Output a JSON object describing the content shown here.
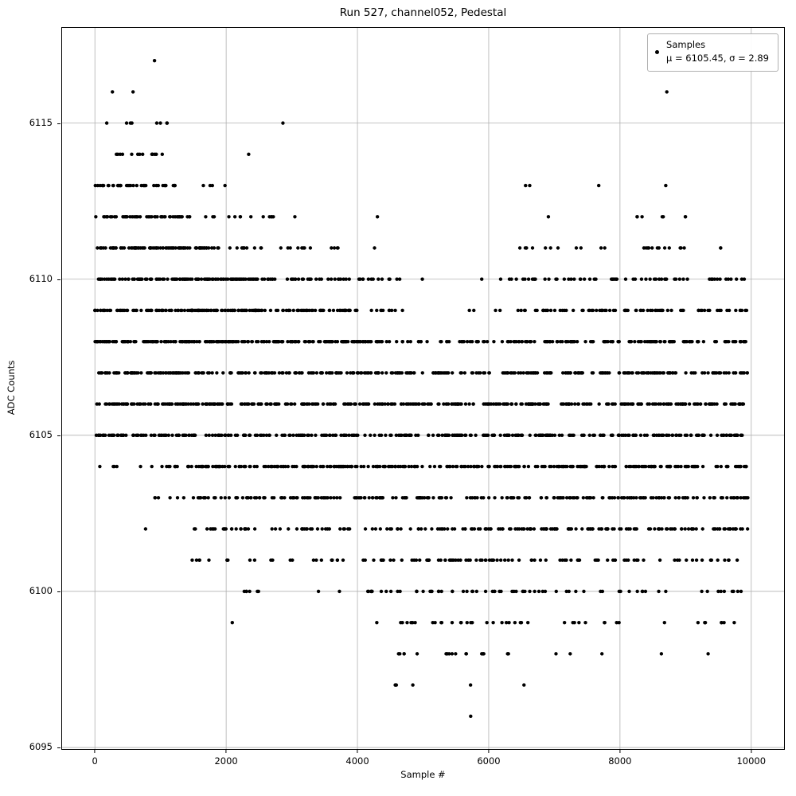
{
  "figure": {
    "title": "Run 527, channel052, Pedestal",
    "xlabel": "Sample #",
    "ylabel": "ADC Counts",
    "legend": {
      "line1": "Samples",
      "line2": "μ = 6105.45, σ = 2.89"
    }
  },
  "chart_data": {
    "type": "scatter",
    "title": "Run 527, channel052, Pedestal",
    "xlabel": "Sample #",
    "ylabel": "ADC Counts",
    "xlim": [
      -500,
      10500
    ],
    "ylim": [
      6094.95,
      6118.05
    ],
    "x_ticks": [
      0,
      2000,
      4000,
      6000,
      8000,
      10000
    ],
    "y_ticks": [
      6095,
      6100,
      6105,
      6110,
      6115
    ],
    "grid": true,
    "grid_color": "#b0b0b0",
    "legend_position": "upper right",
    "marker_color": "#000000",
    "marker_radius_px": 2.2,
    "stats": {
      "mu": 6105.45,
      "sigma": 2.89
    },
    "n_samples_nominal": 10000,
    "bands": [
      {
        "v": 6117,
        "seg": [
          [
            860,
            940,
            1
          ]
        ]
      },
      {
        "v": 6116,
        "seg": [
          [
            240,
            300,
            1
          ],
          [
            530,
            590,
            1
          ],
          [
            8660,
            8740,
            1
          ]
        ]
      },
      {
        "v": 6115,
        "seg": [
          [
            170,
            230,
            1
          ],
          [
            420,
            650,
            3
          ],
          [
            880,
            1130,
            4
          ],
          [
            2820,
            2880,
            1
          ]
        ]
      },
      {
        "v": 6114,
        "seg": [
          [
            290,
            480,
            4
          ],
          [
            560,
            760,
            4
          ],
          [
            860,
            1140,
            6
          ],
          [
            2280,
            2360,
            1
          ]
        ]
      },
      {
        "v": 6113,
        "seg": [
          [
            0,
            250,
            8
          ],
          [
            260,
            700,
            14
          ],
          [
            700,
            1250,
            16
          ],
          [
            1640,
            1800,
            3
          ],
          [
            1960,
            2040,
            1
          ],
          [
            6540,
            6660,
            2
          ],
          [
            7640,
            7710,
            1
          ],
          [
            8640,
            8710,
            1
          ]
        ]
      },
      {
        "v": 6112,
        "seg": [
          [
            0,
            1450,
            50
          ],
          [
            1650,
            2450,
            8
          ],
          [
            2550,
            3050,
            6
          ],
          [
            4270,
            4330,
            1
          ],
          [
            6840,
            6910,
            1
          ],
          [
            8230,
            8420,
            3
          ],
          [
            8600,
            8750,
            2
          ],
          [
            8950,
            9060,
            2
          ]
        ]
      },
      {
        "v": 6111,
        "seg": [
          [
            0,
            1900,
            85
          ],
          [
            1900,
            2700,
            10
          ],
          [
            2700,
            3600,
            8
          ],
          [
            3600,
            4300,
            5
          ],
          [
            6450,
            6700,
            4
          ],
          [
            6850,
            7100,
            3
          ],
          [
            7300,
            7450,
            2
          ],
          [
            7700,
            7820,
            2
          ],
          [
            8200,
            8500,
            5
          ],
          [
            8550,
            8800,
            4
          ],
          [
            8900,
            9200,
            3
          ],
          [
            9400,
            9600,
            2
          ]
        ]
      },
      {
        "v": 6110,
        "seg": [
          [
            0,
            2500,
            115
          ],
          [
            2500,
            3500,
            25
          ],
          [
            3500,
            4650,
            22
          ],
          [
            4950,
            5030,
            1
          ],
          [
            5840,
            5920,
            1
          ],
          [
            6150,
            6350,
            3
          ],
          [
            6400,
            7000,
            10
          ],
          [
            7000,
            7600,
            10
          ],
          [
            7600,
            8200,
            10
          ],
          [
            8200,
            8900,
            14
          ],
          [
            8900,
            9950,
            16
          ]
        ]
      },
      {
        "v": 6109,
        "seg": [
          [
            0,
            2500,
            120
          ],
          [
            2500,
            4600,
            60
          ],
          [
            4600,
            4700,
            1
          ],
          [
            5640,
            5780,
            2
          ],
          [
            6080,
            6220,
            2
          ],
          [
            6420,
            7200,
            18
          ],
          [
            7200,
            8200,
            22
          ],
          [
            8200,
            9200,
            22
          ],
          [
            9200,
            9950,
            16
          ]
        ]
      },
      {
        "v": 6108,
        "seg": [
          [
            0,
            2200,
            110
          ],
          [
            2200,
            4400,
            95
          ],
          [
            4400,
            5400,
            18
          ],
          [
            5400,
            6300,
            16
          ],
          [
            6300,
            7500,
            40
          ],
          [
            7500,
            8800,
            42
          ],
          [
            8800,
            9950,
            30
          ]
        ]
      },
      {
        "v": 6107,
        "seg": [
          [
            0,
            2500,
            95
          ],
          [
            2500,
            4450,
            75
          ],
          [
            4450,
            6400,
            60
          ],
          [
            6400,
            8200,
            65
          ],
          [
            8200,
            9950,
            60
          ]
        ]
      },
      {
        "v": 6106,
        "seg": [
          [
            0,
            9950,
            380
          ]
        ]
      },
      {
        "v": 6105,
        "seg": [
          [
            0,
            9950,
            330
          ]
        ]
      },
      {
        "v": 6104,
        "seg": [
          [
            70,
            130,
            1
          ],
          [
            270,
            430,
            3
          ],
          [
            670,
            730,
            1
          ],
          [
            840,
            1160,
            5
          ],
          [
            1160,
            9950,
            300
          ]
        ]
      },
      {
        "v": 6103,
        "seg": [
          [
            860,
            1000,
            3
          ],
          [
            1140,
            1260,
            2
          ],
          [
            1340,
            1410,
            1
          ],
          [
            1500,
            2500,
            25
          ],
          [
            2500,
            9950,
            200
          ]
        ]
      },
      {
        "v": 6102,
        "seg": [
          [
            770,
            830,
            1
          ],
          [
            1440,
            2500,
            22
          ],
          [
            2500,
            4200,
            24
          ],
          [
            4200,
            9950,
            140
          ]
        ]
      },
      {
        "v": 6101,
        "seg": [
          [
            1440,
            1820,
            5
          ],
          [
            1990,
            2110,
            3
          ],
          [
            2340,
            2720,
            4
          ],
          [
            2890,
            3010,
            2
          ],
          [
            3290,
            4300,
            12
          ],
          [
            4300,
            5500,
            25
          ],
          [
            5500,
            7000,
            25
          ],
          [
            7000,
            8500,
            22
          ],
          [
            8500,
            9950,
            16
          ]
        ]
      },
      {
        "v": 6100,
        "seg": [
          [
            2040,
            2760,
            6
          ],
          [
            3340,
            3410,
            1
          ],
          [
            3690,
            3760,
            1
          ],
          [
            4140,
            5200,
            18
          ],
          [
            5200,
            6600,
            22
          ],
          [
            6600,
            7600,
            10
          ],
          [
            7600,
            8600,
            10
          ],
          [
            8600,
            9950,
            10
          ]
        ]
      },
      {
        "v": 6099,
        "seg": [
          [
            2040,
            2110,
            1
          ],
          [
            4290,
            4360,
            1
          ],
          [
            4540,
            5200,
            8
          ],
          [
            5200,
            6000,
            9
          ],
          [
            6000,
            6750,
            8
          ],
          [
            7090,
            7520,
            5
          ],
          [
            7740,
            7820,
            2
          ],
          [
            7940,
            8010,
            2
          ],
          [
            8640,
            8710,
            1
          ],
          [
            9140,
            9420,
            4
          ],
          [
            9500,
            9750,
            4
          ]
        ]
      },
      {
        "v": 6098,
        "seg": [
          [
            4540,
            4720,
            4
          ],
          [
            4890,
            4960,
            1
          ],
          [
            5240,
            5560,
            5
          ],
          [
            5640,
            5720,
            2
          ],
          [
            5840,
            5960,
            3
          ],
          [
            6240,
            6360,
            2
          ],
          [
            6990,
            7060,
            1
          ],
          [
            7240,
            7310,
            1
          ],
          [
            7690,
            7760,
            1
          ],
          [
            8590,
            8660,
            1
          ],
          [
            9340,
            9410,
            1
          ]
        ]
      },
      {
        "v": 6097,
        "seg": [
          [
            4540,
            4660,
            3
          ],
          [
            4840,
            4910,
            1
          ],
          [
            5690,
            5760,
            1
          ],
          [
            6490,
            6560,
            1
          ]
        ]
      },
      {
        "v": 6096,
        "seg": [
          [
            5690,
            5760,
            1
          ]
        ]
      }
    ]
  }
}
